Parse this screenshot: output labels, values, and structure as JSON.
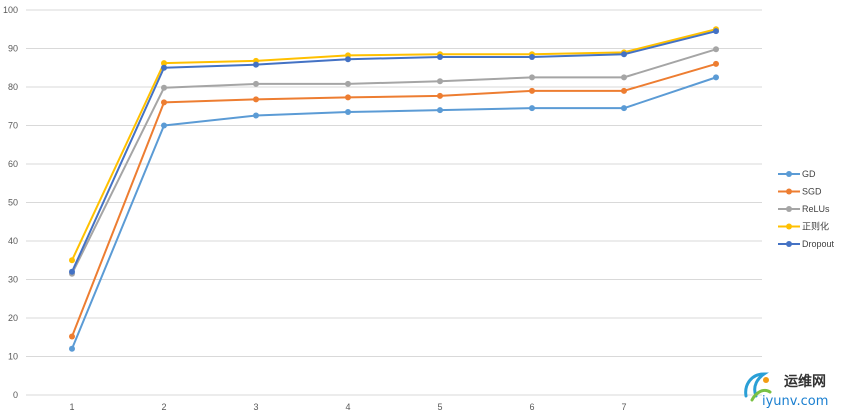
{
  "chart_data": {
    "type": "line",
    "categories": [
      "1",
      "2",
      "3",
      "4",
      "5",
      "6",
      "7",
      ""
    ],
    "x": [
      1,
      2,
      3,
      4,
      5,
      6,
      7,
      8
    ],
    "ylim": [
      0,
      100
    ],
    "yticks": [
      0,
      10,
      20,
      30,
      40,
      50,
      60,
      70,
      80,
      90,
      100
    ],
    "grid": true,
    "legend_position": "right",
    "series": [
      {
        "name": "GD",
        "color": "#5B9BD5",
        "values": [
          12,
          70,
          72.6,
          73.5,
          74,
          74.5,
          74.5,
          82.5
        ]
      },
      {
        "name": "SGD",
        "color": "#ED7D31",
        "values": [
          15.2,
          76,
          76.8,
          77.3,
          77.7,
          79,
          79,
          86
        ]
      },
      {
        "name": "ReLUs",
        "color": "#A5A5A5",
        "values": [
          31.5,
          79.8,
          80.8,
          80.8,
          81.5,
          82.5,
          82.5,
          89.8
        ]
      },
      {
        "name": "正则化",
        "color": "#FFC000",
        "values": [
          35,
          86.2,
          86.8,
          88.2,
          88.5,
          88.5,
          89,
          95
        ]
      },
      {
        "name": "Dropout",
        "color": "#4472C4",
        "values": [
          32,
          85,
          85.8,
          87.2,
          87.8,
          87.8,
          88.5,
          94.5
        ]
      }
    ]
  },
  "watermark": {
    "brand_cn": "运维网",
    "brand_url": "iyunv.com"
  }
}
